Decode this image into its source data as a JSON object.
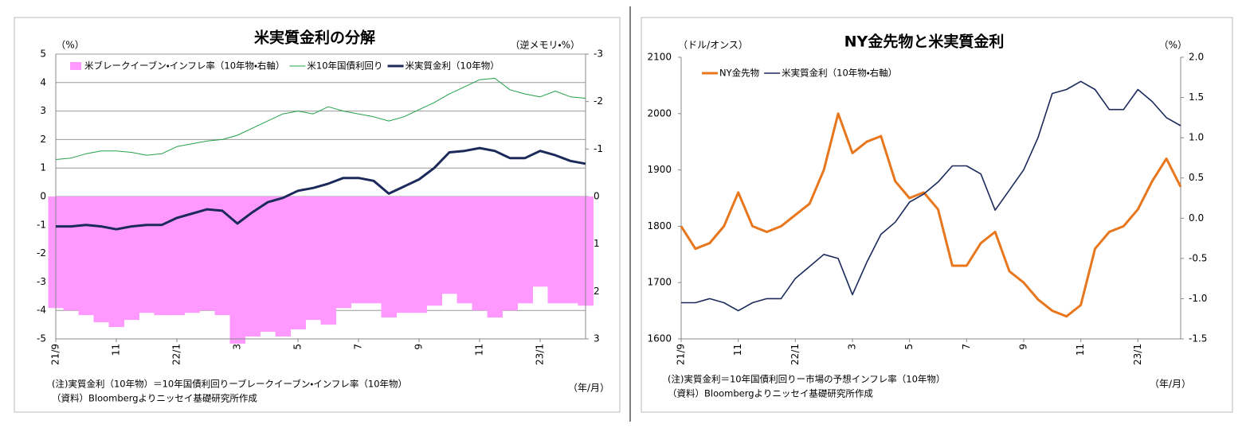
{
  "chart_data": [
    {
      "type": "line",
      "title": "米実質金利の分解",
      "y_unit_label": "（%）",
      "y2_unit_label": "（逆メモリ・%）",
      "x_unit_label": "（年/月）",
      "notes": [
        "(注)実質金利（10年物）＝10年国債利回りーブレークイーブン・インフレ率（10年物）",
        "（資料）Bloombergよりニッセイ基礎研究所作成"
      ],
      "categories": [
        "21/9",
        null,
        null,
        null,
        "11",
        null,
        null,
        null,
        "22/1",
        null,
        null,
        null,
        "3",
        null,
        null,
        null,
        "5",
        null,
        null,
        null,
        "7",
        null,
        null,
        null,
        "9",
        null,
        null,
        null,
        "11",
        null,
        null,
        null,
        "23/1",
        null,
        null,
        null
      ],
      "ylim": [
        -5,
        5
      ],
      "yticks": [
        -5,
        -4,
        -3,
        -2,
        -1,
        0,
        1,
        2,
        3,
        4,
        5
      ],
      "y2lim": [
        3,
        -3
      ],
      "y2ticks": [
        -3,
        -2,
        -1,
        0,
        1,
        2,
        3
      ],
      "grid": true,
      "negative_tick_color": "#e00000",
      "series": [
        {
          "name": "米ブレークイーブン・インフレ率（10年物・右軸）",
          "color": "#ff99ff",
          "axis": "y2",
          "style": "area",
          "values": [
            2.35,
            2.4,
            2.5,
            2.65,
            2.75,
            2.6,
            2.45,
            2.5,
            2.5,
            2.45,
            2.4,
            2.5,
            3.1,
            2.95,
            2.85,
            2.95,
            2.8,
            2.6,
            2.7,
            2.35,
            2.25,
            2.25,
            2.55,
            2.45,
            2.45,
            2.3,
            2.05,
            2.25,
            2.4,
            2.55,
            2.4,
            2.25,
            1.9,
            2.25,
            2.25,
            2.3
          ]
        },
        {
          "name": "米10年国債利回り",
          "color": "#22a04a",
          "style": "line",
          "values": [
            1.3,
            1.35,
            1.5,
            1.6,
            1.6,
            1.55,
            1.45,
            1.5,
            1.75,
            1.85,
            1.95,
            2.0,
            2.15,
            2.4,
            2.65,
            2.9,
            3.0,
            2.9,
            3.15,
            3.0,
            2.9,
            2.8,
            2.65,
            2.8,
            3.05,
            3.3,
            3.6,
            3.85,
            4.1,
            4.15,
            3.75,
            3.6,
            3.5,
            3.7,
            3.5,
            3.45
          ]
        },
        {
          "name": "米実質金利（10年物）",
          "color": "#1b2a5a",
          "style": "line",
          "values": [
            -1.05,
            -1.05,
            -1.0,
            -1.05,
            -1.15,
            -1.05,
            -1.0,
            -1.0,
            -0.75,
            -0.6,
            -0.45,
            -0.5,
            -0.95,
            -0.55,
            -0.2,
            -0.05,
            0.2,
            0.3,
            0.45,
            0.65,
            0.65,
            0.55,
            0.1,
            0.35,
            0.6,
            1.0,
            1.55,
            1.6,
            1.7,
            1.6,
            1.35,
            1.35,
            1.6,
            1.45,
            1.25,
            1.15
          ]
        }
      ]
    },
    {
      "type": "line",
      "title": "NY金先物と米実質金利",
      "y_unit_label": "（ドル/オンス）",
      "y2_unit_label": "（%）",
      "x_unit_label": "（年/月）",
      "notes": [
        "(注)実質金利＝10年国債利回りー市場の予想インフレ率（10年物）",
        "（資料）Bloombergよりニッセイ基礎研究所作成"
      ],
      "categories": [
        "21/9",
        null,
        null,
        null,
        "11",
        null,
        null,
        null,
        "22/1",
        null,
        null,
        null,
        "3",
        null,
        null,
        null,
        "5",
        null,
        null,
        null,
        "7",
        null,
        null,
        null,
        "9",
        null,
        null,
        null,
        "11",
        null,
        null,
        null,
        "23/1",
        null,
        null,
        null
      ],
      "ylim": [
        1600,
        2100
      ],
      "yticks": [
        1600,
        1700,
        1800,
        1900,
        2000,
        2100
      ],
      "y2lim": [
        -1.5,
        2.0
      ],
      "y2ticks": [
        {
          "value": -1.5,
          "label": "-1.5"
        },
        {
          "value": -1.0,
          "label": "-1.0"
        },
        {
          "value": -0.5,
          "label": "-0.5"
        },
        {
          "value": 0.0,
          "label": "0.0"
        },
        {
          "value": 0.5,
          "label": "0.5"
        },
        {
          "value": 1.0,
          "label": "1.0"
        },
        {
          "value": 1.5,
          "label": "1.5"
        },
        {
          "value": 2.0,
          "label": "2.0"
        }
      ],
      "grid": false,
      "negative_tick_color": "#e00000",
      "series": [
        {
          "name": "NY金先物",
          "color": "#e8761c",
          "style": "line",
          "values": [
            1800,
            1760,
            1770,
            1800,
            1860,
            1800,
            1790,
            1800,
            1820,
            1840,
            1900,
            2000,
            1930,
            1950,
            1960,
            1880,
            1850,
            1860,
            1830,
            1730,
            1730,
            1770,
            1790,
            1720,
            1700,
            1670,
            1650,
            1640,
            1660,
            1760,
            1790,
            1800,
            1830,
            1880,
            1920,
            1870
          ]
        },
        {
          "name": "米実質金利（10年物・右軸）",
          "color": "#1b2a5a",
          "axis": "y2",
          "style": "line",
          "values": [
            -1.05,
            -1.05,
            -1.0,
            -1.05,
            -1.15,
            -1.05,
            -1.0,
            -1.0,
            -0.75,
            -0.6,
            -0.45,
            -0.5,
            -0.95,
            -0.55,
            -0.2,
            -0.05,
            0.2,
            0.3,
            0.45,
            0.65,
            0.65,
            0.55,
            0.1,
            0.35,
            0.6,
            1.0,
            1.55,
            1.6,
            1.7,
            1.6,
            1.35,
            1.35,
            1.6,
            1.45,
            1.25,
            1.15
          ]
        }
      ]
    }
  ]
}
